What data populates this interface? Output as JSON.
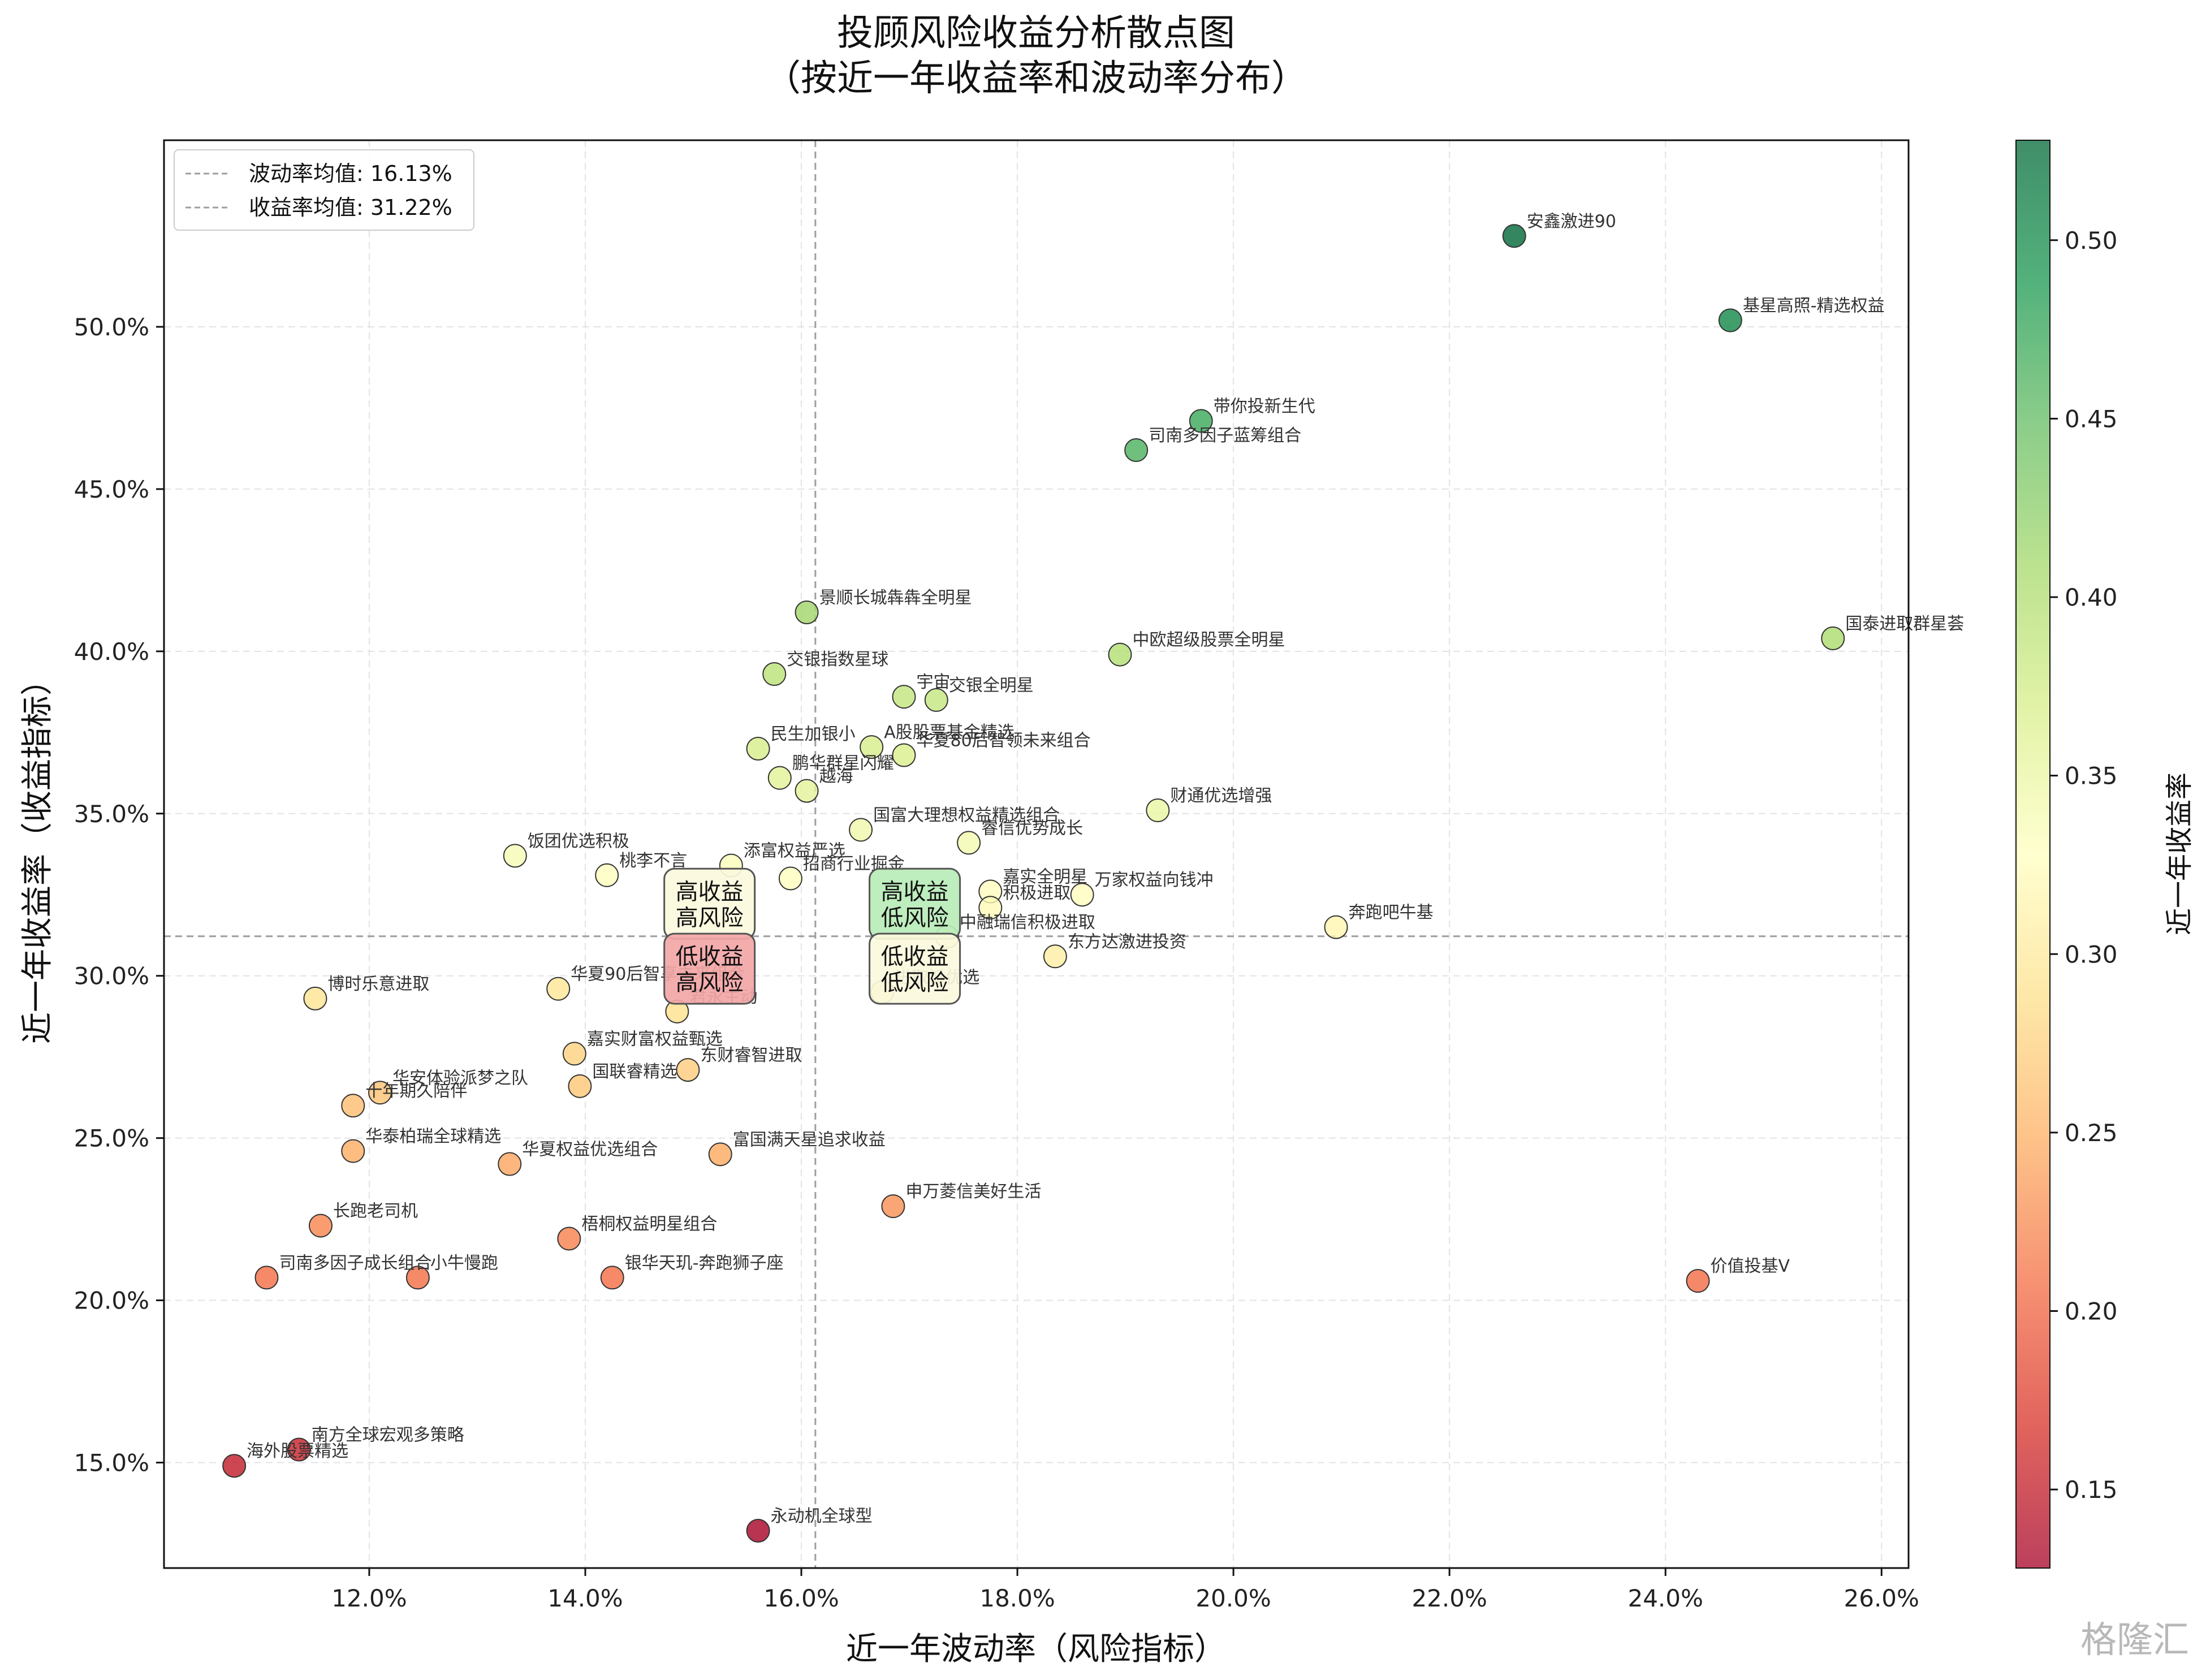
{
  "chart_data": {
    "type": "scatter",
    "title": "投顾风险收益分析散点图",
    "subtitle": "（按近一年收益率和波动率分布）",
    "xlabel": "近一年波动率（风险指标）",
    "ylabel": "近一年收益率（收益指标）",
    "colorbar_label": "近一年收益率",
    "xlim": [
      0.101,
      0.2625
    ],
    "ylim": [
      0.1175,
      0.5575
    ],
    "x_ticks": [
      "12.0%",
      "14.0%",
      "16.0%",
      "18.0%",
      "20.0%",
      "22.0%",
      "24.0%",
      "26.0%"
    ],
    "x_tick_values": [
      0.12,
      0.14,
      0.16,
      0.18,
      0.2,
      0.22,
      0.24,
      0.26
    ],
    "y_ticks": [
      "15.0%",
      "20.0%",
      "25.0%",
      "30.0%",
      "35.0%",
      "40.0%",
      "45.0%",
      "50.0%"
    ],
    "y_tick_values": [
      0.15,
      0.2,
      0.25,
      0.3,
      0.35,
      0.4,
      0.45,
      0.5
    ],
    "colorbar_ticks": [
      "0.15",
      "0.20",
      "0.25",
      "0.30",
      "0.35",
      "0.40",
      "0.45",
      "0.50"
    ],
    "colorbar_tick_values": [
      0.15,
      0.2,
      0.25,
      0.3,
      0.35,
      0.4,
      0.45,
      0.5
    ],
    "color_range": [
      0.128,
      0.528
    ],
    "grid": true,
    "legend_position": "top-left",
    "legend": [
      {
        "label": "波动率均值: 16.13%",
        "value": 0.1613
      },
      {
        "label": "收益率均值: 31.22%",
        "value": 0.3122
      }
    ],
    "quadrants": [
      {
        "label1": "高收益",
        "label2": "高风险",
        "x": 0.1515,
        "y": 0.3222,
        "color": "#fbf8dc"
      },
      {
        "label1": "高收益",
        "label2": "低风险",
        "x": 0.1705,
        "y": 0.3222,
        "color": "#b9ecb9"
      },
      {
        "label1": "低收益",
        "label2": "高风险",
        "x": 0.1515,
        "y": 0.3022,
        "color": "#f3a6a6"
      },
      {
        "label1": "低收益",
        "label2": "低风险",
        "x": 0.1705,
        "y": 0.3022,
        "color": "#fbf8dc"
      }
    ],
    "points": [
      {
        "name": "安鑫激进90",
        "x": 0.226,
        "y": 0.528
      },
      {
        "name": "基星高照-精选权益",
        "x": 0.246,
        "y": 0.502
      },
      {
        "name": "带你投新生代",
        "x": 0.197,
        "y": 0.471
      },
      {
        "name": "司南多因子蓝筹组合",
        "x": 0.191,
        "y": 0.462
      },
      {
        "name": "景顺长城犇犇全明星",
        "x": 0.1605,
        "y": 0.412
      },
      {
        "name": "中欧超级股票全明星",
        "x": 0.1895,
        "y": 0.399
      },
      {
        "name": "国泰进取群星荟",
        "x": 0.2555,
        "y": 0.404
      },
      {
        "name": "交银指数星球",
        "x": 0.1575,
        "y": 0.393
      },
      {
        "name": "宇宙",
        "x": 0.1695,
        "y": 0.386
      },
      {
        "name": "交银全明星",
        "x": 0.1725,
        "y": 0.385
      },
      {
        "name": "民生加银小",
        "x": 0.156,
        "y": 0.37
      },
      {
        "name": "A股股票基金精选",
        "x": 0.1665,
        "y": 0.3705
      },
      {
        "name": "华夏80后智领未来组合",
        "x": 0.1695,
        "y": 0.368
      },
      {
        "name": "鹏华群星闪耀",
        "x": 0.158,
        "y": 0.361
      },
      {
        "name": "越海",
        "x": 0.1605,
        "y": 0.357
      },
      {
        "name": "财通优选增强",
        "x": 0.193,
        "y": 0.351
      },
      {
        "name": "国富大理想权益精选组合",
        "x": 0.1655,
        "y": 0.345
      },
      {
        "name": "睿信优势成长",
        "x": 0.1755,
        "y": 0.341
      },
      {
        "name": "饭团优选积极",
        "x": 0.1335,
        "y": 0.337
      },
      {
        "name": "添富权益严选",
        "x": 0.1535,
        "y": 0.334
      },
      {
        "name": "桃李不言",
        "x": 0.142,
        "y": 0.331
      },
      {
        "name": "招商行业掘金",
        "x": 0.159,
        "y": 0.33
      },
      {
        "name": "嘉实全明星",
        "x": 0.1775,
        "y": 0.326
      },
      {
        "name": "万家权益向钱冲",
        "x": 0.186,
        "y": 0.325
      },
      {
        "name": "积极进取",
        "x": 0.1775,
        "y": 0.321
      },
      {
        "name": "奔跑吧牛基",
        "x": 0.2095,
        "y": 0.315
      },
      {
        "name": "中融瑞信积极进取",
        "x": 0.1735,
        "y": 0.312
      },
      {
        "name": "东方达激进投资",
        "x": 0.1835,
        "y": 0.306
      },
      {
        "name": "华夏90后智享未来组合",
        "x": 0.1375,
        "y": 0.296
      },
      {
        "name": "进取派优选",
        "x": 0.1675,
        "y": 0.295
      },
      {
        "name": "博时乐意进取",
        "x": 0.115,
        "y": 0.293
      },
      {
        "name": "君永主动",
        "x": 0.1485,
        "y": 0.289
      },
      {
        "name": "嘉实财富权益甄选",
        "x": 0.139,
        "y": 0.276
      },
      {
        "name": "东财睿智进取",
        "x": 0.1495,
        "y": 0.271
      },
      {
        "name": "国联睿精选",
        "x": 0.1395,
        "y": 0.266
      },
      {
        "name": "华安体验派梦之队",
        "x": 0.121,
        "y": 0.264
      },
      {
        "name": "十年期久陪伴",
        "x": 0.1185,
        "y": 0.26
      },
      {
        "name": "华泰柏瑞全球精选",
        "x": 0.1185,
        "y": 0.246
      },
      {
        "name": "富国满天星追求收益",
        "x": 0.1525,
        "y": 0.245
      },
      {
        "name": "华夏权益优选组合",
        "x": 0.133,
        "y": 0.242
      },
      {
        "name": "申万菱信美好生活",
        "x": 0.1685,
        "y": 0.229
      },
      {
        "name": "长跑老司机",
        "x": 0.1155,
        "y": 0.223
      },
      {
        "name": "梧桐权益明星组合",
        "x": 0.1385,
        "y": 0.219
      },
      {
        "name": "司南多因子成长组合",
        "x": 0.1105,
        "y": 0.207
      },
      {
        "name": "小牛慢跑",
        "x": 0.1245,
        "y": 0.207
      },
      {
        "name": "银华天玑-奔跑狮子座",
        "x": 0.1425,
        "y": 0.207
      },
      {
        "name": "价值投基V",
        "x": 0.243,
        "y": 0.206
      },
      {
        "name": "海外股票精选",
        "x": 0.1075,
        "y": 0.149
      },
      {
        "name": "南方全球宏观多策略",
        "x": 0.1135,
        "y": 0.154
      },
      {
        "name": "永动机全球型",
        "x": 0.156,
        "y": 0.129
      }
    ]
  },
  "colors": {
    "colormap": [
      "#a50026",
      "#d73027",
      "#f46d43",
      "#fdae61",
      "#fee08b",
      "#ffffbf",
      "#d9ef8b",
      "#a6d96a",
      "#66bd63",
      "#1a9850",
      "#006837"
    ],
    "mean_line": "#9e9e9e",
    "grid": "#e3e3e3"
  },
  "watermark": "格隆汇"
}
